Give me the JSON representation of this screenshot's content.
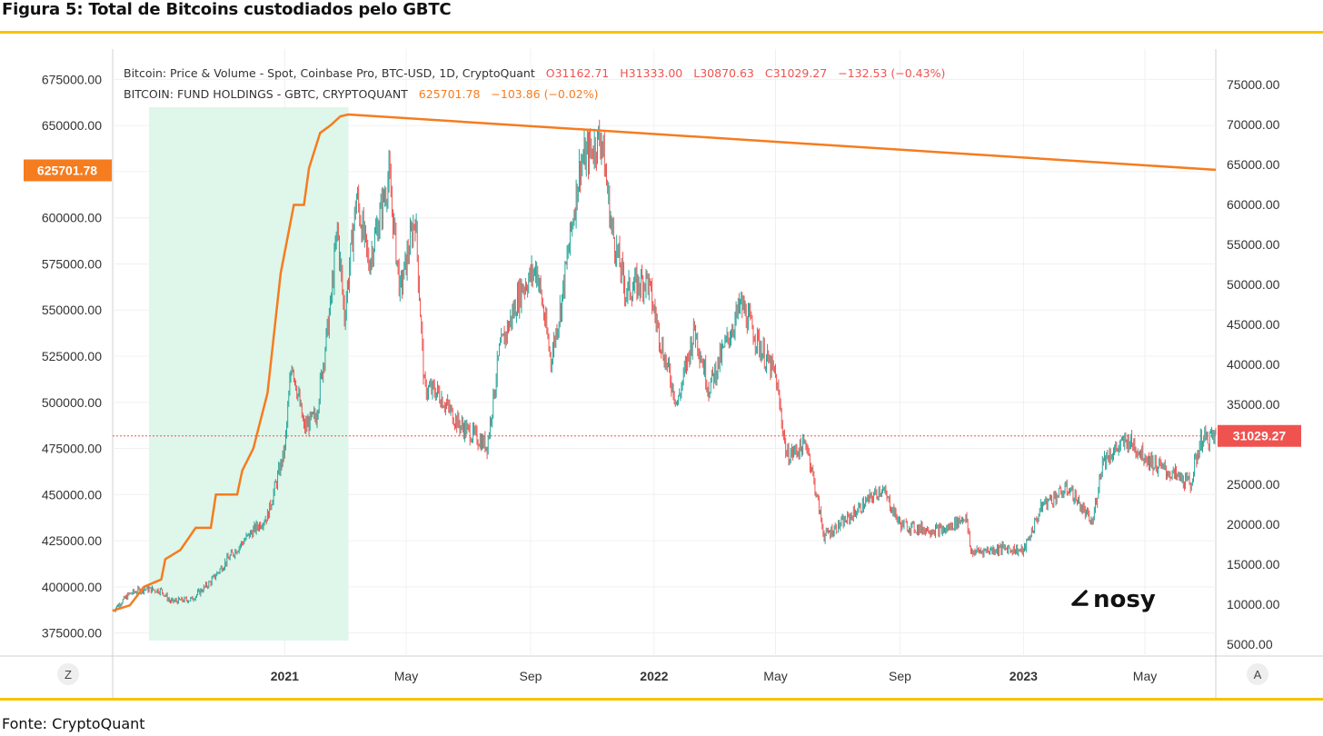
{
  "figure": {
    "title": "Figura 5: Total de Bitcoins custodiados pelo GBTC",
    "source": "Fonte: CryptoQuant"
  },
  "colors": {
    "accent_rule": "#f5c400",
    "up_candle": "#26a69a",
    "down_candle": "#ef5350",
    "holdings_line": "#f57c1f",
    "highlight": "#dff6ea",
    "price_label_bg": "#ef5350",
    "holdings_label_bg": "#f57c1f"
  },
  "legend": {
    "line1_label": "Bitcoin: Price & Volume - Spot, Coinbase Pro, BTC-USD, 1D, CryptoQuant",
    "line1_o": "O31162.71",
    "line1_h": "H31333.00",
    "line1_l": "L30870.63",
    "line1_c": "C31029.27",
    "line1_chg": "−132.53 (−0.43%)",
    "line2_label": "BITCOIN: FUND HOLDINGS - GBTC, CRYPTOQUANT",
    "line2_value": "625701.78",
    "line2_chg": "−103.86 (−0.02%)"
  },
  "buttons": {
    "left_scale": "Z",
    "right_scale": "A"
  },
  "watermark": "nosy",
  "chart_data": {
    "type": "candlestick_with_line",
    "left_axis": {
      "series": "BITCOIN: FUND HOLDINGS - GBTC",
      "ticks": [
        375000,
        400000,
        425000,
        450000,
        475000,
        500000,
        525000,
        550000,
        575000,
        600000,
        625000,
        650000,
        675000
      ],
      "tick_labels": [
        "375000.00",
        "400000.00",
        "425000.00",
        "450000.00",
        "475000.00",
        "500000.00",
        "525000.00",
        "550000.00",
        "575000.00",
        "600000.00",
        "",
        "650000.00",
        "675000.00"
      ],
      "current_label": "625701.78",
      "current_value": 625701.78
    },
    "right_axis": {
      "series": "Bitcoin Price (BTC-USD)",
      "ticks": [
        5000,
        10000,
        15000,
        20000,
        25000,
        30000,
        35000,
        40000,
        45000,
        50000,
        55000,
        60000,
        65000,
        70000,
        75000
      ],
      "tick_labels": [
        "5000.00",
        "10000.00",
        "15000.00",
        "20000.00",
        "25000.00",
        "",
        "35000.00",
        "40000.00",
        "45000.00",
        "50000.00",
        "55000.00",
        "60000.00",
        "65000.00",
        "70000.00",
        "75000.00"
      ],
      "current_label": "31029.27",
      "current_value": 31029.27
    },
    "x_axis": {
      "labels": [
        {
          "label": "2021",
          "date": "2021-01-01",
          "bold": true
        },
        {
          "label": "May",
          "date": "2021-05-01",
          "bold": false
        },
        {
          "label": "Sep",
          "date": "2021-09-01",
          "bold": false
        },
        {
          "label": "2022",
          "date": "2022-01-01",
          "bold": true
        },
        {
          "label": "May",
          "date": "2022-05-01",
          "bold": false
        },
        {
          "label": "Sep",
          "date": "2022-09-01",
          "bold": false
        },
        {
          "label": "2023",
          "date": "2023-01-01",
          "bold": true
        },
        {
          "label": "May",
          "date": "2023-05-01",
          "bold": false
        }
      ],
      "start_date": "2020-07-15",
      "end_date": "2023-07-10"
    },
    "highlight_range": [
      "2020-08-20",
      "2021-03-05"
    ],
    "holdings_line": [
      [
        "2020-07-15",
        387000
      ],
      [
        "2020-08-01",
        390000
      ],
      [
        "2020-08-15",
        400000
      ],
      [
        "2020-09-01",
        404000
      ],
      [
        "2020-09-05",
        415000
      ],
      [
        "2020-09-20",
        420000
      ],
      [
        "2020-10-05",
        432000
      ],
      [
        "2020-10-20",
        432000
      ],
      [
        "2020-10-25",
        450000
      ],
      [
        "2020-11-15",
        450000
      ],
      [
        "2020-11-20",
        463000
      ],
      [
        "2020-12-01",
        475000
      ],
      [
        "2020-12-15",
        505000
      ],
      [
        "2020-12-28",
        570000
      ],
      [
        "2021-01-10",
        607000
      ],
      [
        "2021-01-20",
        607000
      ],
      [
        "2021-01-25",
        627000
      ],
      [
        "2021-02-05",
        646000
      ],
      [
        "2021-02-15",
        650000
      ],
      [
        "2021-02-25",
        655000
      ],
      [
        "2021-03-05",
        656000
      ],
      [
        "2023-07-10",
        626000
      ]
    ],
    "price_series": [
      [
        "2020-07-15",
        9200
      ],
      [
        "2020-08-01",
        11300
      ],
      [
        "2020-08-15",
        11900
      ],
      [
        "2020-09-01",
        11700
      ],
      [
        "2020-09-10",
        10300
      ],
      [
        "2020-10-01",
        10600
      ],
      [
        "2020-10-20",
        12800
      ],
      [
        "2020-11-05",
        15500
      ],
      [
        "2020-11-25",
        18400
      ],
      [
        "2020-12-15",
        21000
      ],
      [
        "2021-01-01",
        29300
      ],
      [
        "2021-01-08",
        40500
      ],
      [
        "2021-01-20",
        32000
      ],
      [
        "2021-02-01",
        33500
      ],
      [
        "2021-02-15",
        47000
      ],
      [
        "2021-02-22",
        57000
      ],
      [
        "2021-03-01",
        46000
      ],
      [
        "2021-03-13",
        61000
      ],
      [
        "2021-03-25",
        52500
      ],
      [
        "2021-04-14",
        63500
      ],
      [
        "2021-04-25",
        49000
      ],
      [
        "2021-05-10",
        58500
      ],
      [
        "2021-05-19",
        37000
      ],
      [
        "2021-06-01",
        36500
      ],
      [
        "2021-06-22",
        32500
      ],
      [
        "2021-07-20",
        29800
      ],
      [
        "2021-08-01",
        41500
      ],
      [
        "2021-08-23",
        49500
      ],
      [
        "2021-09-07",
        52000
      ],
      [
        "2021-09-21",
        40500
      ],
      [
        "2021-10-01",
        47500
      ],
      [
        "2021-10-20",
        65000
      ],
      [
        "2021-11-10",
        68500
      ],
      [
        "2021-11-20",
        57000
      ],
      [
        "2021-12-04",
        49000
      ],
      [
        "2021-12-25",
        50700
      ],
      [
        "2022-01-10",
        41500
      ],
      [
        "2022-01-24",
        35000
      ],
      [
        "2022-02-10",
        44500
      ],
      [
        "2022-02-24",
        37000
      ],
      [
        "2022-03-28",
        47500
      ],
      [
        "2022-04-20",
        41000
      ],
      [
        "2022-05-01",
        38500
      ],
      [
        "2022-05-12",
        28500
      ],
      [
        "2022-06-01",
        30000
      ],
      [
        "2022-06-18",
        18500
      ],
      [
        "2022-07-10",
        20500
      ],
      [
        "2022-08-14",
        24500
      ],
      [
        "2022-09-01",
        20000
      ],
      [
        "2022-09-15",
        19500
      ],
      [
        "2022-10-15",
        19200
      ],
      [
        "2022-11-05",
        21000
      ],
      [
        "2022-11-10",
        16500
      ],
      [
        "2022-12-15",
        17000
      ],
      [
        "2023-01-01",
        16600
      ],
      [
        "2023-01-20",
        22500
      ],
      [
        "2023-02-15",
        24500
      ],
      [
        "2023-03-10",
        20000
      ],
      [
        "2023-03-20",
        28000
      ],
      [
        "2023-04-14",
        30500
      ],
      [
        "2023-05-10",
        27500
      ],
      [
        "2023-06-15",
        25000
      ],
      [
        "2023-06-25",
        30500
      ],
      [
        "2023-07-10",
        31029.27
      ]
    ],
    "reference_line": {
      "axis": "right",
      "value": 31029.27
    }
  }
}
